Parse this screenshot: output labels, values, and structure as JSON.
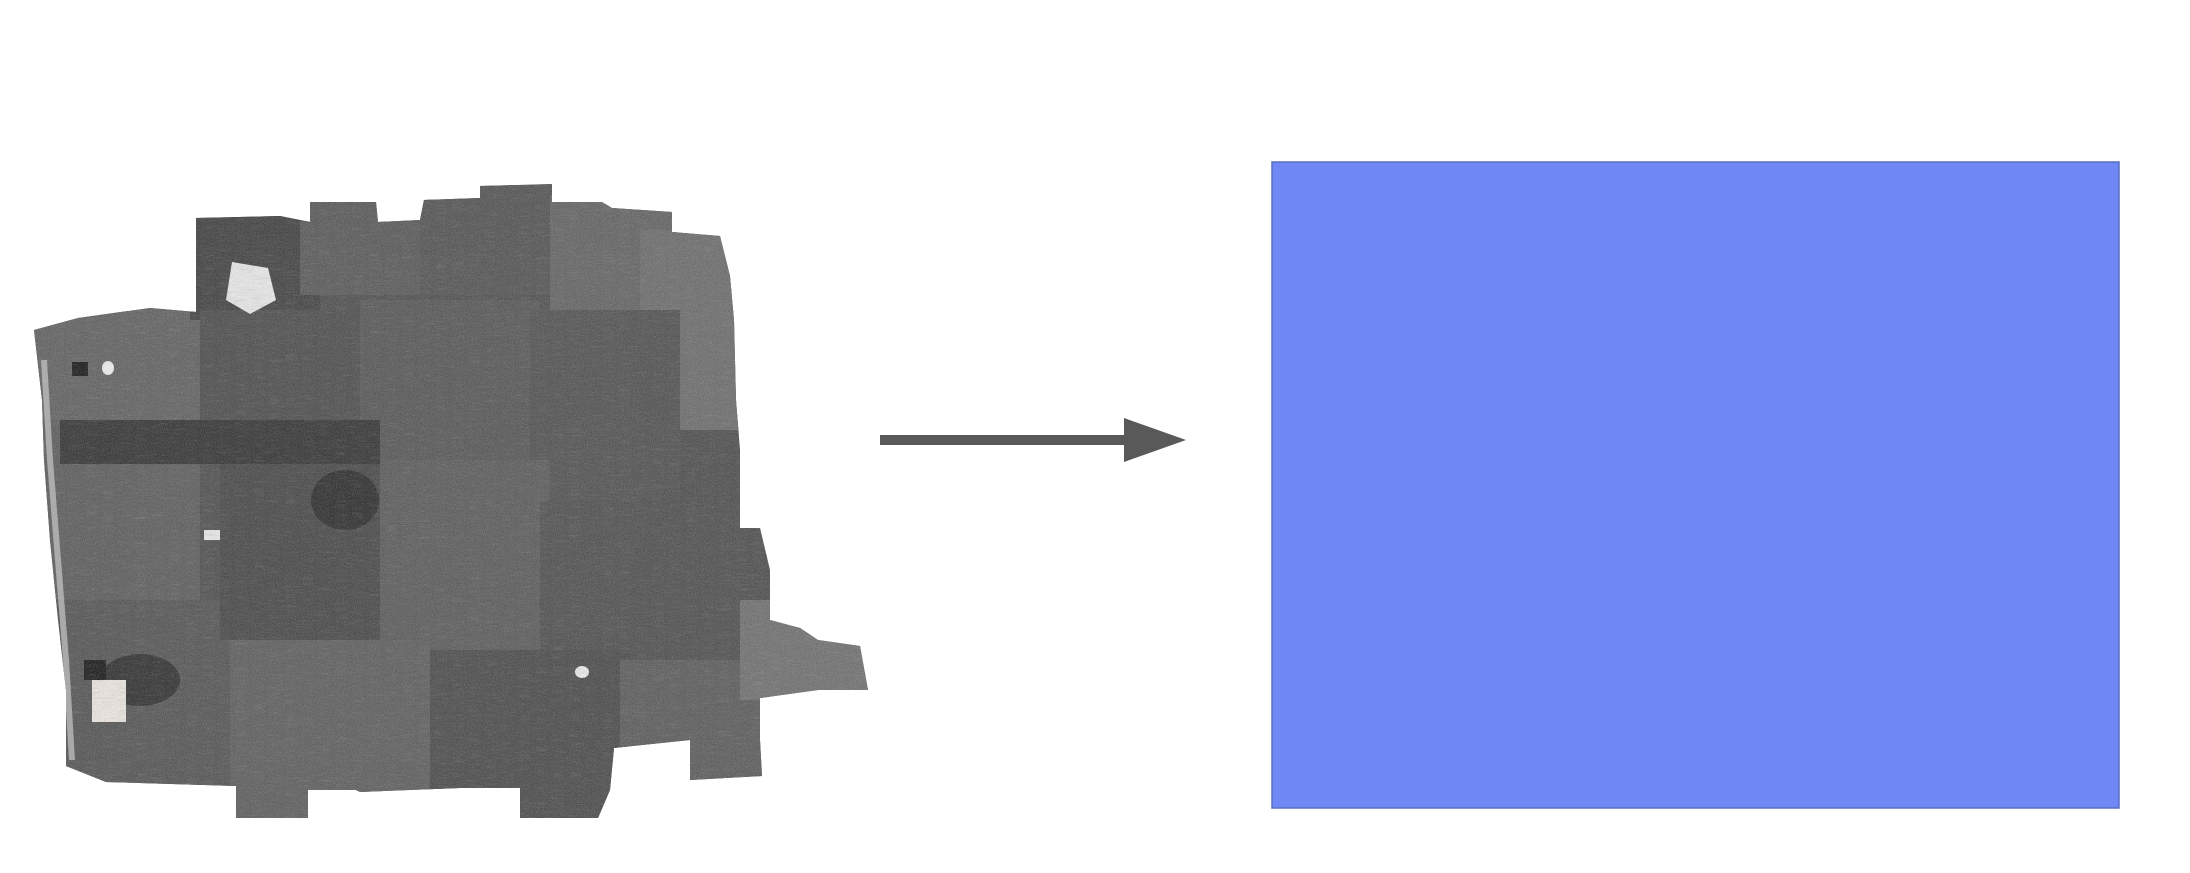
{
  "colors": {
    "background": "#ffffff",
    "target_fill": "#6f88f6",
    "target_stroke": "#5a6ec0",
    "arrow": "#595959",
    "mosaic_dark": "#3a3a3a",
    "mosaic_mid": "#6b6b6b",
    "mosaic_light": "#a8a8a8"
  },
  "source": {
    "icon": "aerial-photo-mosaic-icon"
  },
  "arrow": {
    "icon": "right-arrow-icon",
    "direction": "right"
  },
  "target": {
    "icon": "blue-rectangle"
  }
}
